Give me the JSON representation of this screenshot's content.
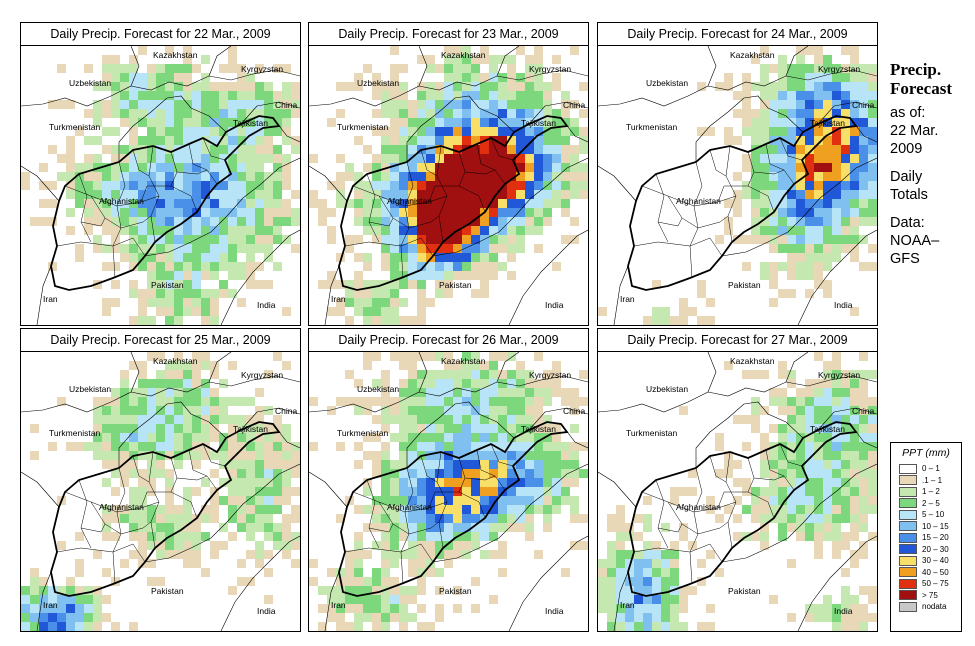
{
  "panels": [
    {
      "title": "Daily Precip. Forecast for  22 Mar., 2009",
      "day": 22
    },
    {
      "title": "Daily Precip. Forecast for  23 Mar., 2009",
      "day": 23
    },
    {
      "title": "Daily Precip. Forecast for  24 Mar., 2009",
      "day": 24
    },
    {
      "title": "Daily Precip. Forecast for  25 Mar., 2009",
      "day": 25
    },
    {
      "title": "Daily Precip. Forecast for  26 Mar., 2009",
      "day": 26
    },
    {
      "title": "Daily Precip. Forecast for  27 Mar., 2009",
      "day": 27
    }
  ],
  "map_labels": [
    "Uzbekistan",
    "Kazakhstan",
    "Kyrgyzstan",
    "China",
    "Turkmenistan",
    "Tajikistan",
    "Afghanistan",
    "Pakistan",
    "Iran",
    "India"
  ],
  "sidebar": {
    "title_line1": "Precip.",
    "title_line2": "Forecast",
    "asof_line1": "as of:",
    "asof_line2": "22 Mar.",
    "asof_line3": "2009",
    "totals_line1": "Daily",
    "totals_line2": "Totals",
    "data_line1": "Data:",
    "data_line2": "NOAA–",
    "data_line3": "GFS"
  },
  "legend": {
    "title": "PPT (mm)",
    "classes": [
      {
        "label": "0 – 1",
        "color": "#ffffff"
      },
      {
        "label": ".1 – 1",
        "color": "#e8d8b8"
      },
      {
        "label": "1 – 2",
        "color": "#c4e8b0"
      },
      {
        "label": "2 – 5",
        "color": "#7dd87d"
      },
      {
        "label": "5 – 10",
        "color": "#b8e4f8"
      },
      {
        "label": "10 – 15",
        "color": "#80c0f0"
      },
      {
        "label": "15 – 20",
        "color": "#4a90e8"
      },
      {
        "label": "20 – 30",
        "color": "#2058d8"
      },
      {
        "label": "30 – 40",
        "color": "#f8e068"
      },
      {
        "label": "40 – 50",
        "color": "#f0a020"
      },
      {
        "label": "50 – 75",
        "color": "#e03010"
      },
      {
        "label": "> 75",
        "color": "#a01010"
      },
      {
        "label": "nodata",
        "color": "#c8c8c8"
      }
    ]
  }
}
